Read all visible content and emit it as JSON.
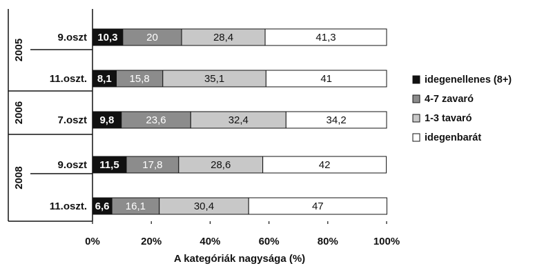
{
  "chart_data": {
    "type": "bar",
    "orientation": "horizontal",
    "stacked": true,
    "xlabel": "A kategóriák nagysága (%)",
    "xlim": [
      0,
      100
    ],
    "xticks": [
      "0%",
      "20%",
      "40%",
      "60%",
      "80%",
      "100%"
    ],
    "grid": false,
    "legend_position": "right",
    "groups": [
      {
        "label": "2005",
        "rows": [
          0,
          1
        ]
      },
      {
        "label": "2006",
        "rows": [
          2
        ]
      },
      {
        "label": "2008",
        "rows": [
          3,
          4
        ]
      }
    ],
    "categories": [
      "9.oszt",
      "11.oszt.",
      "7.oszt",
      "9.oszt",
      "11.oszt."
    ],
    "series": [
      {
        "name": "idegenellenes  (8+)",
        "color": "#111111",
        "values": [
          10.3,
          8.1,
          9.8,
          11.5,
          6.6
        ],
        "labels": [
          "10,3",
          "8,1",
          "9,8",
          "11,5",
          "6,6"
        ]
      },
      {
        "name": "4-7 zavaró",
        "color": "#8c8c8c",
        "values": [
          20,
          15.8,
          23.6,
          17.8,
          16.1
        ],
        "labels": [
          "20",
          "15,8",
          "23,6",
          "17,8",
          "16,1"
        ]
      },
      {
        "name": "1-3 tavaró",
        "color": "#c8c8c8",
        "values": [
          28.4,
          35.1,
          32.4,
          28.6,
          30.4
        ],
        "labels": [
          "28,4",
          "35,1",
          "32,4",
          "28,6",
          "30,4"
        ]
      },
      {
        "name": "idegenbarát",
        "color": "#ffffff",
        "values": [
          41.3,
          41,
          34.2,
          42,
          47
        ],
        "labels": [
          "41,3",
          "41",
          "34,2",
          "42",
          "47"
        ]
      }
    ]
  }
}
